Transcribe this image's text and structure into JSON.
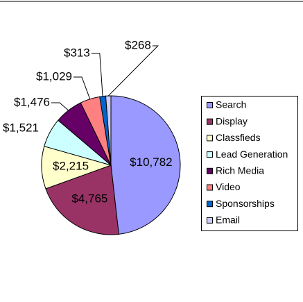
{
  "chart_data": {
    "type": "pie",
    "categories": [
      "Search",
      "Display",
      "Classfieds",
      "Lead Generation",
      "Rich Media",
      "Video",
      "Sponsorships",
      "Email"
    ],
    "values": [
      10782,
      4765,
      2215,
      1521,
      1476,
      1029,
      313,
      268
    ],
    "value_labels": [
      "$10,782",
      "$4,765",
      "$2,215",
      "$1,521",
      "$1,476",
      "$1,029",
      "$313",
      "$268"
    ],
    "colors": [
      "#9999ff",
      "#993366",
      "#ffffcc",
      "#ccffff",
      "#660066",
      "#ff8080",
      "#0066cc",
      "#ccccff"
    ],
    "legend": "right"
  }
}
